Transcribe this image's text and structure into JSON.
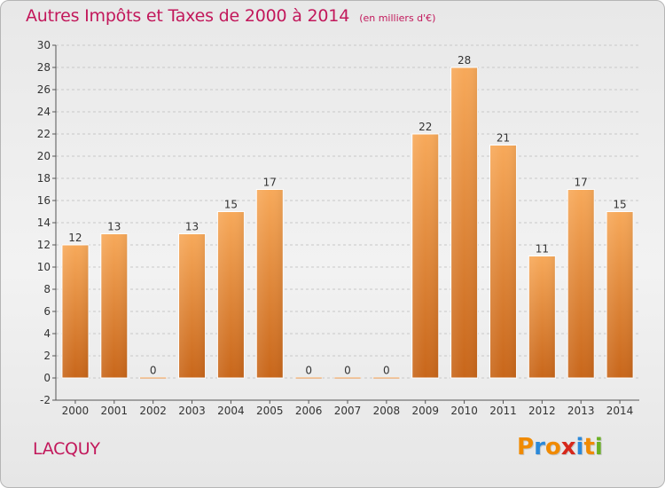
{
  "header": {
    "title": "Autres Impôts et Taxes de 2000 à 2014",
    "subtitle": "(en milliers d'€)"
  },
  "footer": {
    "commune": "LACQUY",
    "logo_text": "Proxiti"
  },
  "colors": {
    "title": "#c2185b",
    "bar_light": "#f7a95a",
    "bar_dark": "#c8661a",
    "grid": "#c8c8c8",
    "logo_letters": [
      "#f08a00",
      "#2b89d9",
      "#f08a00",
      "#d6281b",
      "#2b89d9",
      "#f08a00",
      "#6ab023"
    ]
  },
  "chart_data": {
    "type": "bar",
    "categories": [
      "2000",
      "2001",
      "2002",
      "2003",
      "2004",
      "2005",
      "2006",
      "2007",
      "2008",
      "2009",
      "2010",
      "2011",
      "2012",
      "2013",
      "2014"
    ],
    "values": [
      12,
      13,
      0,
      13,
      15,
      17,
      0,
      0,
      0,
      22,
      28,
      21,
      11,
      17,
      15
    ],
    "title": "Autres Impôts et Taxes de 2000 à 2014",
    "xlabel": "",
    "ylabel": "",
    "ylim": [
      -2,
      30
    ],
    "yticks": [
      -2,
      0,
      2,
      4,
      6,
      8,
      10,
      12,
      14,
      16,
      18,
      20,
      22,
      24,
      26,
      28,
      30
    ],
    "grid": true,
    "legend": "none"
  }
}
